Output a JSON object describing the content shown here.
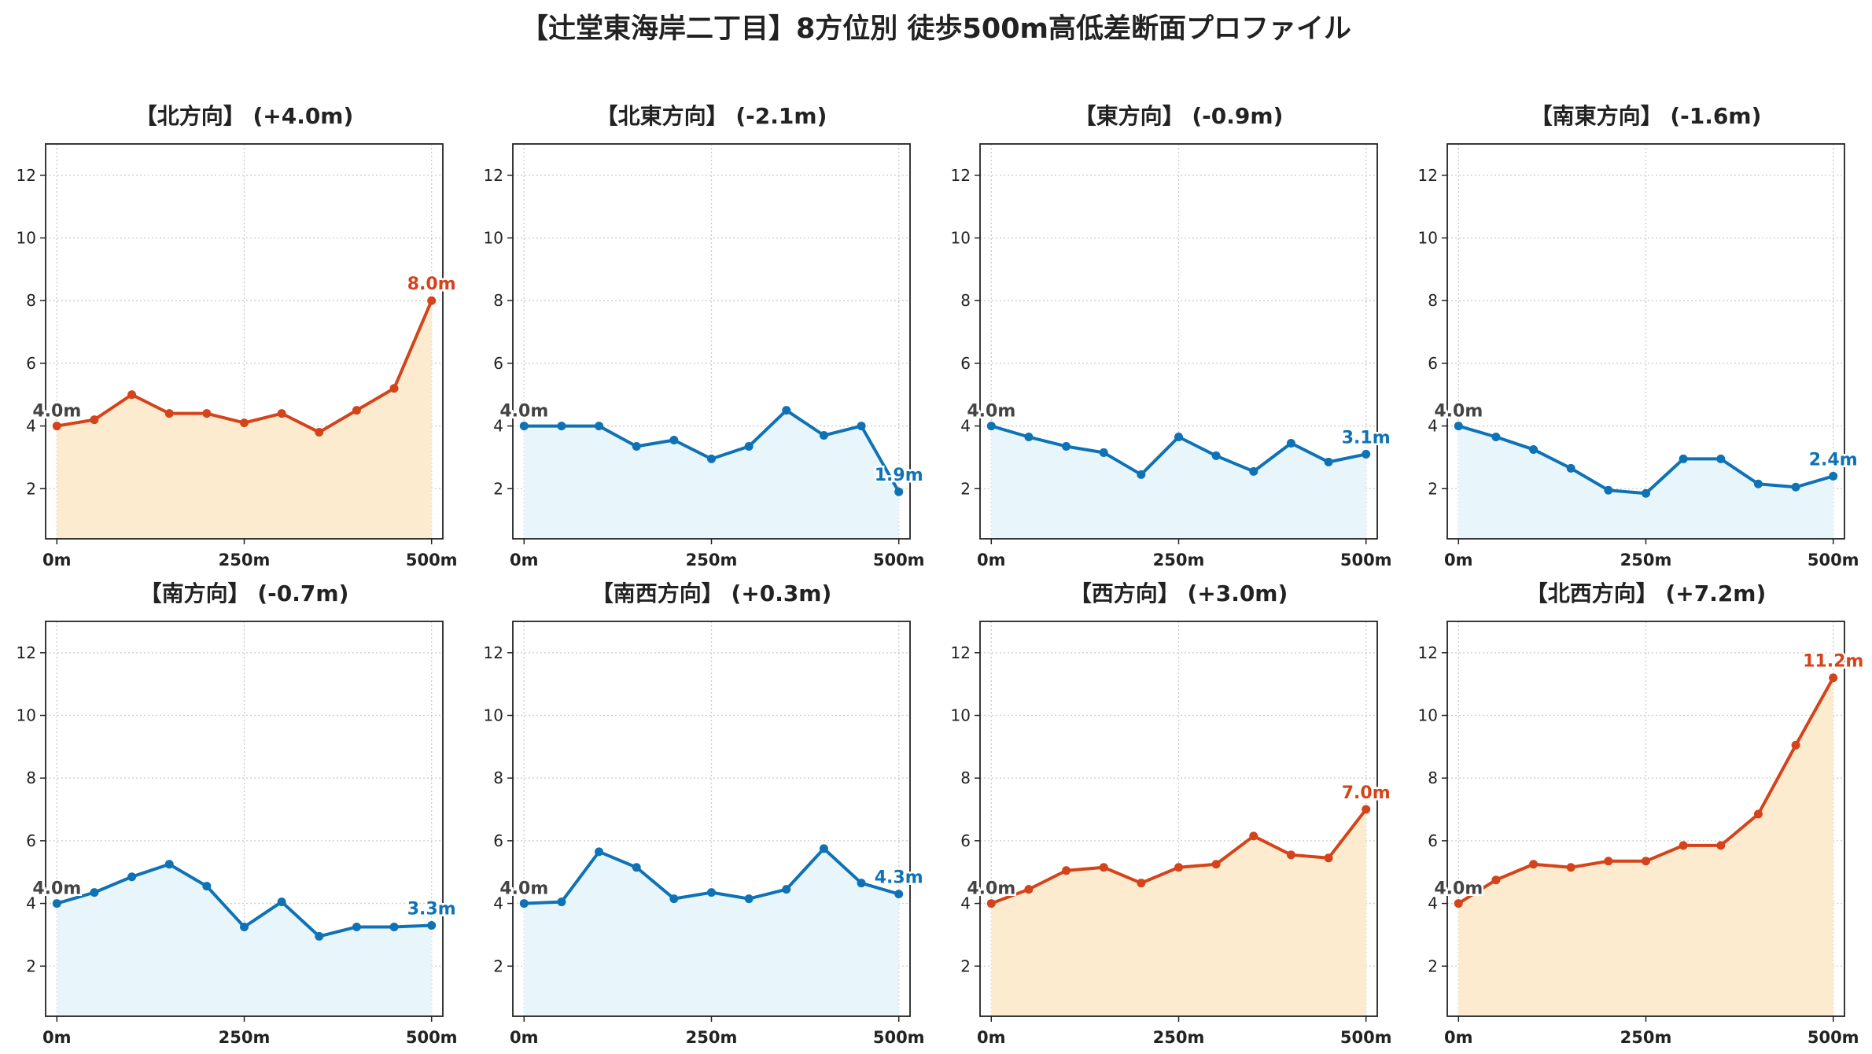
{
  "page": {
    "title": "【辻堂東海岸二丁目】8方位別 徒歩500m高低差断面プロファイル"
  },
  "colors": {
    "up_line": "#d4431a",
    "up_fill": "#fdebd0",
    "down_line": "#0e72b5",
    "down_fill": "#e8f5fb",
    "start_label": "#444444"
  },
  "chart_data": [
    {
      "type": "line",
      "title": "【北方向】 (+4.0m)",
      "trend": "up",
      "x": [
        0,
        50,
        100,
        150,
        200,
        250,
        300,
        350,
        400,
        450,
        500
      ],
      "y": [
        4.0,
        4.2,
        5.0,
        4.4,
        4.4,
        4.1,
        4.4,
        3.8,
        4.5,
        5.2,
        8.0
      ],
      "start_label": "4.0m",
      "end_label": "8.0m",
      "xticks": [
        "0m",
        "250m",
        "500m"
      ],
      "yticks": [
        2,
        4,
        6,
        8,
        10,
        12
      ],
      "xlim": [
        -15,
        515
      ],
      "ylim": [
        0.4,
        13
      ],
      "grid": true
    },
    {
      "type": "line",
      "title": "【北東方向】 (-2.1m)",
      "trend": "down",
      "x": [
        0,
        50,
        100,
        150,
        200,
        250,
        300,
        350,
        400,
        450,
        500
      ],
      "y": [
        4.0,
        4.0,
        4.0,
        3.35,
        3.55,
        2.95,
        3.35,
        4.5,
        3.7,
        4.0,
        1.9
      ],
      "start_label": "4.0m",
      "end_label": "1.9m",
      "xticks": [
        "0m",
        "250m",
        "500m"
      ],
      "yticks": [
        2,
        4,
        6,
        8,
        10,
        12
      ],
      "xlim": [
        -15,
        515
      ],
      "ylim": [
        0.4,
        13
      ],
      "grid": true
    },
    {
      "type": "line",
      "title": "【東方向】 (-0.9m)",
      "trend": "down",
      "x": [
        0,
        50,
        100,
        150,
        200,
        250,
        300,
        350,
        400,
        450,
        500
      ],
      "y": [
        4.0,
        3.65,
        3.35,
        3.15,
        2.45,
        3.65,
        3.05,
        2.55,
        3.45,
        2.85,
        3.1
      ],
      "start_label": "4.0m",
      "end_label": "3.1m",
      "xticks": [
        "0m",
        "250m",
        "500m"
      ],
      "yticks": [
        2,
        4,
        6,
        8,
        10,
        12
      ],
      "xlim": [
        -15,
        515
      ],
      "ylim": [
        0.4,
        13
      ],
      "grid": true
    },
    {
      "type": "line",
      "title": "【南東方向】 (-1.6m)",
      "trend": "down",
      "x": [
        0,
        50,
        100,
        150,
        200,
        250,
        300,
        350,
        400,
        450,
        500
      ],
      "y": [
        4.0,
        3.65,
        3.25,
        2.65,
        1.95,
        1.85,
        2.95,
        2.95,
        2.15,
        2.05,
        2.4
      ],
      "start_label": "4.0m",
      "end_label": "2.4m",
      "xticks": [
        "0m",
        "250m",
        "500m"
      ],
      "yticks": [
        2,
        4,
        6,
        8,
        10,
        12
      ],
      "xlim": [
        -15,
        515
      ],
      "ylim": [
        0.4,
        13
      ],
      "grid": true
    },
    {
      "type": "line",
      "title": "【南方向】 (-0.7m)",
      "trend": "down",
      "x": [
        0,
        50,
        100,
        150,
        200,
        250,
        300,
        350,
        400,
        450,
        500
      ],
      "y": [
        4.0,
        4.35,
        4.85,
        5.25,
        4.55,
        3.25,
        4.05,
        2.95,
        3.25,
        3.25,
        3.3
      ],
      "start_label": "4.0m",
      "end_label": "3.3m",
      "xticks": [
        "0m",
        "250m",
        "500m"
      ],
      "yticks": [
        2,
        4,
        6,
        8,
        10,
        12
      ],
      "xlim": [
        -15,
        515
      ],
      "ylim": [
        0.4,
        13
      ],
      "grid": true
    },
    {
      "type": "line",
      "title": "【南西方向】 (+0.3m)",
      "trend": "down",
      "x": [
        0,
        50,
        100,
        150,
        200,
        250,
        300,
        350,
        400,
        450,
        500
      ],
      "y": [
        4.0,
        4.05,
        5.65,
        5.15,
        4.15,
        4.35,
        4.15,
        4.45,
        5.75,
        4.65,
        4.3
      ],
      "start_label": "4.0m",
      "end_label": "4.3m",
      "xticks": [
        "0m",
        "250m",
        "500m"
      ],
      "yticks": [
        2,
        4,
        6,
        8,
        10,
        12
      ],
      "xlim": [
        -15,
        515
      ],
      "ylim": [
        0.4,
        13
      ],
      "grid": true
    },
    {
      "type": "line",
      "title": "【西方向】 (+3.0m)",
      "trend": "up",
      "x": [
        0,
        50,
        100,
        150,
        200,
        250,
        300,
        350,
        400,
        450,
        500
      ],
      "y": [
        4.0,
        4.45,
        5.05,
        5.15,
        4.65,
        5.15,
        5.25,
        6.15,
        5.55,
        5.45,
        7.0
      ],
      "start_label": "4.0m",
      "end_label": "7.0m",
      "xticks": [
        "0m",
        "250m",
        "500m"
      ],
      "yticks": [
        2,
        4,
        6,
        8,
        10,
        12
      ],
      "xlim": [
        -15,
        515
      ],
      "ylim": [
        0.4,
        13
      ],
      "grid": true
    },
    {
      "type": "line",
      "title": "【北西方向】 (+7.2m)",
      "trend": "up",
      "x": [
        0,
        50,
        100,
        150,
        200,
        250,
        300,
        350,
        400,
        450,
        500
      ],
      "y": [
        4.0,
        4.75,
        5.25,
        5.15,
        5.35,
        5.35,
        5.85,
        5.85,
        6.85,
        9.05,
        11.2
      ],
      "start_label": "4.0m",
      "end_label": "11.2m",
      "xticks": [
        "0m",
        "250m",
        "500m"
      ],
      "yticks": [
        2,
        4,
        6,
        8,
        10,
        12
      ],
      "xlim": [
        -15,
        515
      ],
      "ylim": [
        0.4,
        13
      ],
      "grid": true
    }
  ]
}
